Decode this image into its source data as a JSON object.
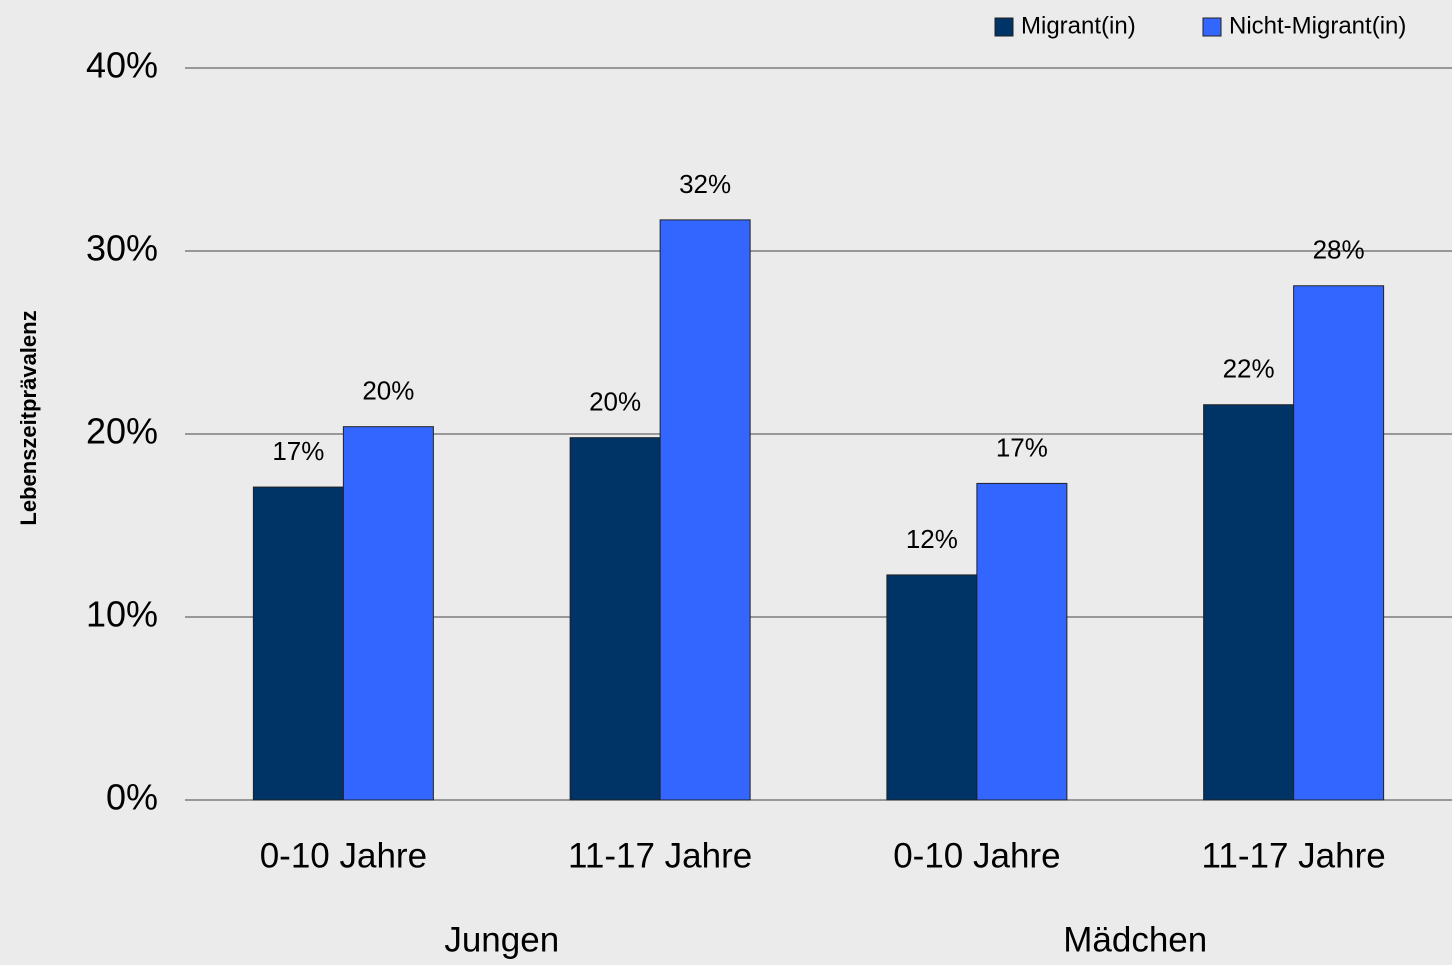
{
  "chart_data": {
    "type": "bar",
    "y_label": "Lebenszeitprävalenz",
    "categories": [
      "0-10 Jahre",
      "11-17 Jahre",
      "0-10 Jahre",
      "11-17 Jahre"
    ],
    "groups": [
      "Jungen",
      "Mädchen"
    ],
    "series": [
      {
        "name": "Migrant(in)",
        "color": "#003366",
        "values": [
          17.1,
          19.8,
          12.3,
          21.6
        ],
        "value_labels": [
          "17%",
          "20%",
          "12%",
          "22%"
        ]
      },
      {
        "name": "Nicht-Migrant(in)",
        "color": "#3366ff",
        "values": [
          20.4,
          31.7,
          17.3,
          28.1
        ],
        "value_labels": [
          "20%",
          "32%",
          "17%",
          "28%"
        ]
      }
    ],
    "ylim": [
      0,
      40
    ],
    "yticks": [
      {
        "value": 0,
        "label": "0%"
      },
      {
        "value": 10,
        "label": "10%"
      },
      {
        "value": 20,
        "label": "20%"
      },
      {
        "value": 30,
        "label": "30%"
      },
      {
        "value": 40,
        "label": "40%"
      }
    ],
    "grid": true,
    "legend": "top-right"
  }
}
